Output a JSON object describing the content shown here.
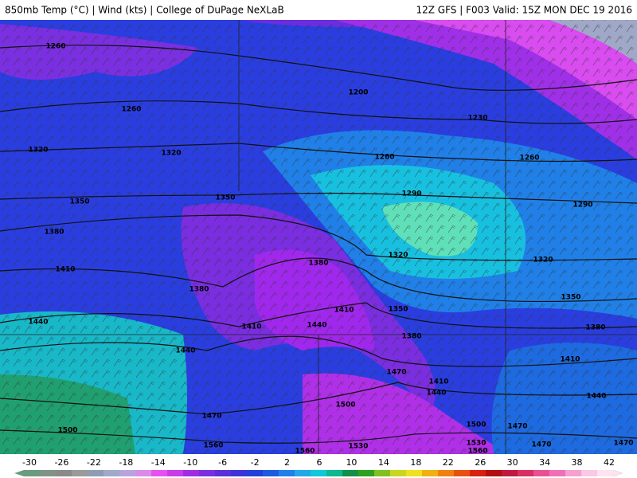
{
  "header": {
    "left": "850mb Temp (°C) | Wind (kts) | College of DuPage NeXLaB",
    "right": "12Z GFS | F003 Valid: 15Z MON DEC 19 2016"
  },
  "contour_labels": [
    1260,
    1260,
    1320,
    1320,
    1350,
    1350,
    1380,
    1410,
    1380,
    1440,
    1440,
    1410,
    1380,
    1410,
    1440,
    1470,
    1500,
    1500,
    1530,
    1560,
    1560,
    1200,
    1230,
    1260,
    1290,
    1260,
    1290,
    1320,
    1320,
    1350,
    1380,
    1350,
    1380,
    1410,
    1440,
    1410,
    1440,
    1470,
    1500,
    1470,
    1530,
    1560,
    1470,
    1470
  ],
  "colorbar": {
    "ticks": [
      -30,
      -26,
      -22,
      -18,
      -14,
      -10,
      -6,
      -2,
      2,
      6,
      10,
      14,
      18,
      22,
      26,
      30,
      34,
      38,
      42
    ],
    "colors": [
      "#6b9a7e",
      "#7f9486",
      "#8a8a8a",
      "#9a9a9a",
      "#8d9db4",
      "#a0aac8",
      "#b8a4dc",
      "#d88ce8",
      "#e650f0",
      "#c83ce8",
      "#a02ce4",
      "#7a2ee0",
      "#5a2ed8",
      "#3c32d8",
      "#2040d8",
      "#1e5ae0",
      "#1e80e8",
      "#20a8e8",
      "#10c8d8",
      "#10b890",
      "#109048",
      "#30a020",
      "#80c020",
      "#c8d820",
      "#f0e020",
      "#f0b010",
      "#f08010",
      "#e85010",
      "#d82010",
      "#b01010",
      "#c01840",
      "#d83060",
      "#e85090",
      "#f070b8",
      "#f4a0d0",
      "#f8c8e4",
      "#fce4f0"
    ]
  }
}
